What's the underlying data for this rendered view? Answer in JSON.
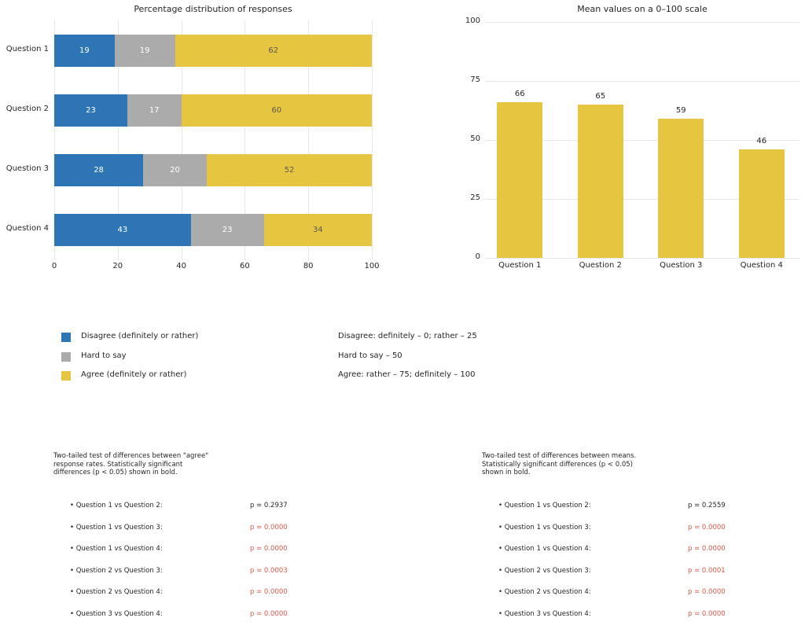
{
  "chart_data": [
    {
      "type": "bar",
      "orientation": "horizontal_stacked",
      "title": "Percentage distribution of responses",
      "categories": [
        "Question 1",
        "Question 2",
        "Question 3",
        "Question 4"
      ],
      "series": [
        {
          "name": "Disagree (definitely or rather)",
          "color": "#2e75b6",
          "value_label_color": "#ffffff",
          "values": [
            19,
            23,
            28,
            43
          ]
        },
        {
          "name": "Hard to say",
          "color": "#ababab",
          "value_label_color": "#ffffff",
          "values": [
            19,
            17,
            20,
            23
          ]
        },
        {
          "name": "Agree (definitely or rather)",
          "color": "#e6c540",
          "value_label_color": "#595959",
          "values": [
            62,
            60,
            52,
            34
          ]
        }
      ],
      "xlim": [
        0,
        100
      ],
      "xticks": [
        0,
        20,
        40,
        60,
        80,
        100
      ],
      "grid": "vertical",
      "legend_position": "below"
    },
    {
      "type": "bar",
      "orientation": "vertical",
      "title": "Mean values on a 0–100 scale",
      "categories": [
        "Question 1",
        "Question 2",
        "Question 3",
        "Question 4"
      ],
      "values": [
        66,
        65,
        59,
        46
      ],
      "bar_color": "#e6c540",
      "value_labels": [
        66,
        65,
        59,
        46
      ],
      "ylim": [
        0,
        100
      ],
      "yticks": [
        0,
        25,
        50,
        75,
        100
      ],
      "grid": "horizontal"
    }
  ],
  "legend": {
    "items": [
      {
        "label": "Disagree (definitely or rather)",
        "color": "#2e75b6"
      },
      {
        "label": "Hard to say",
        "color": "#ababab"
      },
      {
        "label": "Agree (definitely or rather)",
        "color": "#e6c540"
      }
    ],
    "scale_notes": [
      "Disagree: definitely – 0; rather – 25",
      "Hard to say – 50",
      "Agree: rather – 75; definitely – 100"
    ]
  },
  "significance_tests": [
    {
      "heading_lines": [
        "Two-tailed test of differences between \"agree\"",
        "response rates. Statistically significant",
        "differences (p < 0.05) shown in bold."
      ],
      "comparisons": [
        {
          "label": "Question 1 vs Question 2:",
          "p_value": "p = 0.2937",
          "significant": false
        },
        {
          "label": "Question 1 vs Question 3:",
          "p_value": "p = 0.0000",
          "significant": true
        },
        {
          "label": "Question 1 vs Question 4:",
          "p_value": "p = 0.0000",
          "significant": true
        },
        {
          "label": "Question 2 vs Question 3:",
          "p_value": "p = 0.0003",
          "significant": true
        },
        {
          "label": "Question 2 vs Question 4:",
          "p_value": "p = 0.0000",
          "significant": true
        },
        {
          "label": "Question 3 vs Question 4:",
          "p_value": "p = 0.0000",
          "significant": true
        }
      ]
    },
    {
      "heading_lines": [
        "Two-tailed test of differences between means.",
        "Statistically significant differences (p < 0.05)",
        "shown in bold."
      ],
      "comparisons": [
        {
          "label": "Question 1 vs Question 2:",
          "p_value": "p = 0.2559",
          "significant": false
        },
        {
          "label": "Question 1 vs Question 3:",
          "p_value": "p = 0.0000",
          "significant": true
        },
        {
          "label": "Question 1 vs Question 4:",
          "p_value": "p = 0.0000",
          "significant": true
        },
        {
          "label": "Question 2 vs Question 3:",
          "p_value": "p = 0.0001",
          "significant": true
        },
        {
          "label": "Question 2 vs Question 4:",
          "p_value": "p = 0.0000",
          "significant": true
        },
        {
          "label": "Question 3 vs Question 4:",
          "p_value": "p = 0.0000",
          "significant": true
        }
      ]
    }
  ],
  "colors": {
    "significant_p": "#d9594c",
    "normal_p": "#262626",
    "grid": "#e7e7e7",
    "text": "#262626",
    "background": "#ffffff"
  }
}
